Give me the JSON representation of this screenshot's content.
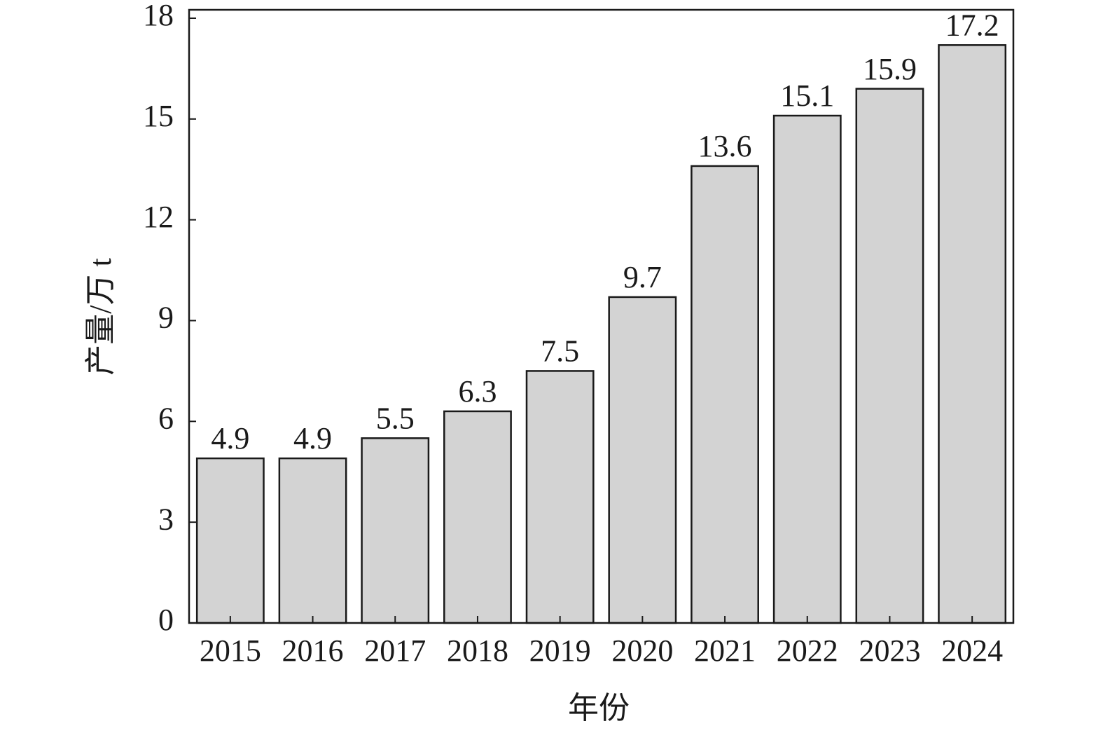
{
  "chart_data": {
    "type": "bar",
    "categories": [
      "2015",
      "2016",
      "2017",
      "2018",
      "2019",
      "2020",
      "2021",
      "2022",
      "2023",
      "2024"
    ],
    "values": [
      4.9,
      4.9,
      5.5,
      6.3,
      7.5,
      9.7,
      13.6,
      15.1,
      15.9,
      17.2
    ],
    "color": "#d3d3d3",
    "ylim": [
      0,
      18.25
    ],
    "yticks": [
      0,
      3,
      6,
      9,
      12,
      15,
      18
    ],
    "x_label": "年份",
    "y_label": "产量/万 t"
  }
}
